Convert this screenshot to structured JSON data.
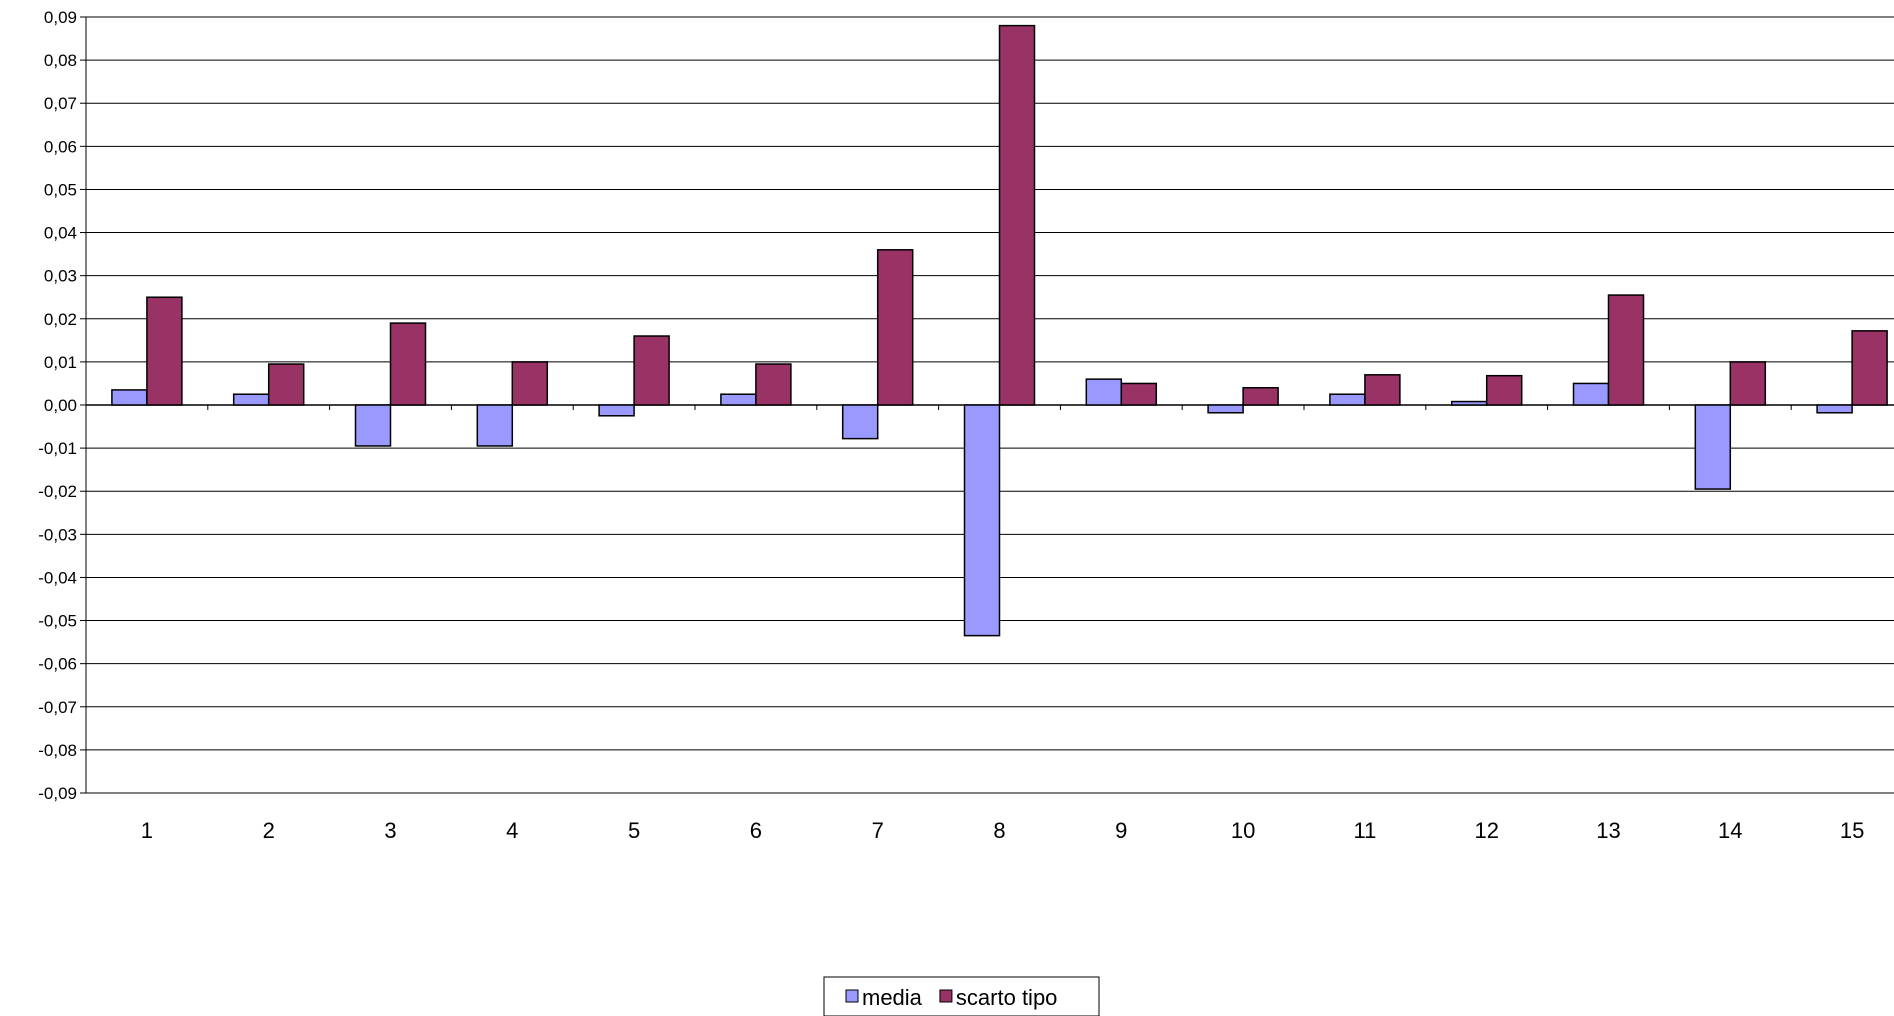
{
  "chart_data": {
    "type": "bar",
    "categories": [
      "1",
      "2",
      "3",
      "4",
      "5",
      "6",
      "7",
      "8",
      "9",
      "10",
      "11",
      "12",
      "13",
      "14",
      "15"
    ],
    "series": [
      {
        "name": "media",
        "color": "#9999ff",
        "values": [
          0.0035,
          0.0025,
          -0.0095,
          -0.0095,
          -0.0025,
          0.0025,
          -0.0078,
          -0.0535,
          0.006,
          -0.0018,
          0.0025,
          0.0008,
          0.005,
          -0.0195,
          -0.0018
        ]
      },
      {
        "name": "scarto tipo",
        "color": "#993366",
        "values": [
          0.025,
          0.0095,
          0.019,
          0.01,
          0.016,
          0.0095,
          0.036,
          0.088,
          0.005,
          0.004,
          0.007,
          0.0068,
          0.0255,
          0.01,
          0.0172
        ]
      }
    ],
    "ylim": [
      -0.09,
      0.09
    ],
    "yticks": [
      "0,09",
      "0,08",
      "0,07",
      "0,06",
      "0,05",
      "0,04",
      "0,03",
      "0,02",
      "0,01",
      "0,00",
      "-0,01",
      "-0,02",
      "-0,03",
      "-0,04",
      "-0,05",
      "-0,06",
      "-0,07",
      "-0,08",
      "-0,09"
    ],
    "grid": true,
    "legend_position": "bottom",
    "title": "",
    "xlabel": "",
    "ylabel": ""
  }
}
